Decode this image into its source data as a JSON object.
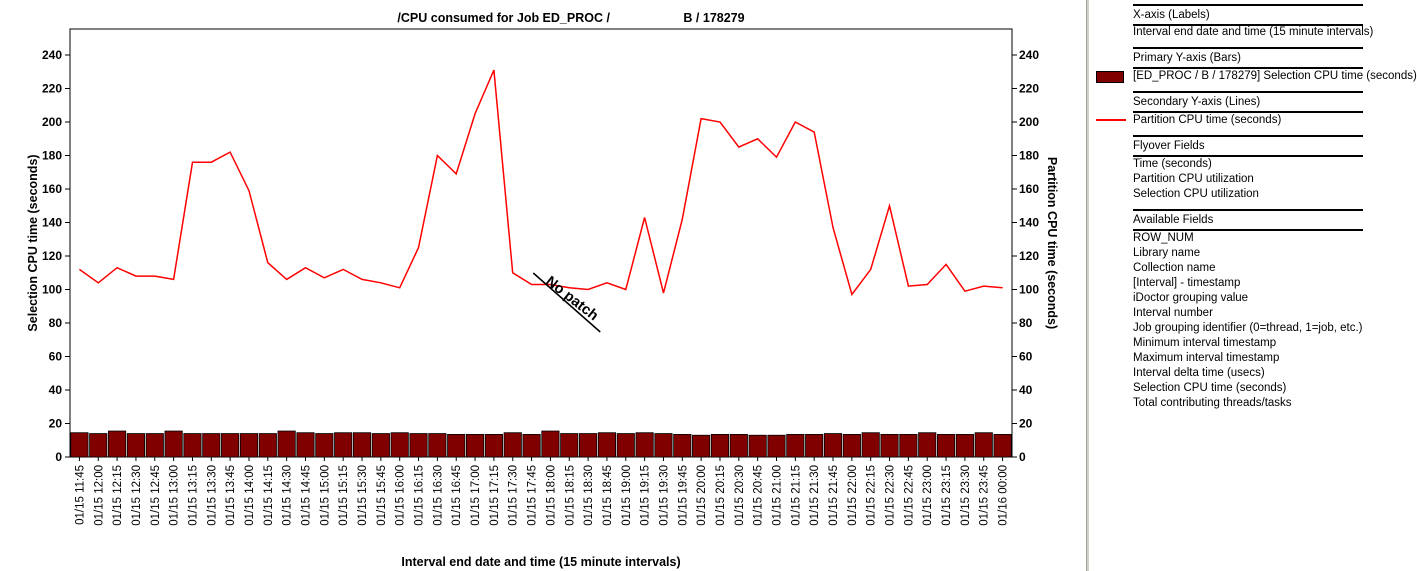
{
  "chart_data": {
    "type": "bar+line",
    "title": "/CPU consumed for Job ED_PROC / ",
    "title_redacted_tail": "B / 178279",
    "xlabel": "Interval end date and time (15 minute intervals)",
    "ylabel": "Selection CPU time (seconds)",
    "y2label": "Partition CPU time (seconds)",
    "ylim": [
      0,
      250
    ],
    "y_ticks": [
      0,
      20,
      40,
      60,
      80,
      100,
      120,
      140,
      160,
      180,
      200,
      220,
      240
    ],
    "y2lim": [
      0,
      250
    ],
    "y2_ticks": [
      0,
      20,
      40,
      60,
      80,
      100,
      120,
      140,
      160,
      180,
      200,
      220,
      240
    ],
    "grid": false,
    "categories": [
      "01/15 11:45",
      "01/15 12:00",
      "01/15 12:15",
      "01/15 12:30",
      "01/15 12:45",
      "01/15 13:00",
      "01/15 13:15",
      "01/15 13:30",
      "01/15 13:45",
      "01/15 14:00",
      "01/15 14:15",
      "01/15 14:30",
      "01/15 14:45",
      "01/15 15:00",
      "01/15 15:15",
      "01/15 15:30",
      "01/15 15:45",
      "01/15 16:00",
      "01/15 16:15",
      "01/15 16:30",
      "01/15 16:45",
      "01/15 17:00",
      "01/15 17:15",
      "01/15 17:30",
      "01/15 17:45",
      "01/15 18:00",
      "01/15 18:15",
      "01/15 18:30",
      "01/15 18:45",
      "01/15 19:00",
      "01/15 19:15",
      "01/15 19:30",
      "01/15 19:45",
      "01/15 20:00",
      "01/15 20:15",
      "01/15 20:30",
      "01/15 20:45",
      "01/15 21:00",
      "01/15 21:15",
      "01/15 21:30",
      "01/15 21:45",
      "01/15 22:00",
      "01/15 22:15",
      "01/15 22:30",
      "01/15 22:45",
      "01/15 23:00",
      "01/15 23:15",
      "01/15 23:30",
      "01/15 23:45",
      "01/16 00:00"
    ],
    "series": [
      {
        "name": "[ED_PROC / B / 178279] Selection CPU time (seconds)",
        "type": "bar",
        "axis": "primary",
        "color": "#800000",
        "values": [
          14.5,
          14,
          15.5,
          14,
          14,
          15.5,
          14,
          14,
          14,
          14,
          14,
          15.5,
          14.5,
          14,
          14.5,
          14.5,
          14,
          14.5,
          14,
          14,
          13.5,
          13.5,
          13.5,
          14.5,
          13.5,
          15.5,
          14,
          14,
          14.5,
          14,
          14.5,
          14,
          13.5,
          13,
          13.5,
          13.5,
          13,
          13,
          13.5,
          13.5,
          14,
          13.5,
          14.5,
          13.5,
          13.5,
          14.5,
          13.5,
          13.5,
          14.5,
          13.5
        ]
      },
      {
        "name": "Partition CPU time (seconds)",
        "type": "line",
        "axis": "secondary",
        "color": "#ff0000",
        "values": [
          112,
          104,
          113,
          108,
          108,
          106,
          176,
          176,
          182,
          159,
          116,
          106,
          113,
          107,
          112,
          106,
          104,
          101,
          125,
          180,
          169,
          205,
          231,
          110,
          103,
          103,
          101,
          100,
          104,
          100,
          143,
          98,
          142,
          202,
          200,
          185,
          190,
          179,
          200,
          194,
          137,
          97,
          112,
          150,
          102,
          103,
          115,
          99,
          102,
          101
        ]
      }
    ],
    "annotations": [
      {
        "text": "No patch",
        "at_index": 26
      }
    ]
  },
  "legend": {
    "x_axis_header": "X-axis (Labels)",
    "x_axis_field": "Interval end date and time (15 minute intervals)",
    "primary_header": "Primary Y-axis (Bars)",
    "primary_field": "[ED_PROC / B / 178279] Selection CPU time (seconds)",
    "secondary_header": "Secondary Y-axis (Lines)",
    "secondary_field": "Partition CPU time (seconds)",
    "flyover_header": "Flyover Fields",
    "flyover_fields": [
      "Time (seconds)",
      "Partition CPU utilization",
      "Selection CPU utilization"
    ],
    "available_header": "Available Fields",
    "available_fields": [
      "ROW_NUM",
      "Library name",
      "Collection name",
      "[Interval] - timestamp",
      "iDoctor grouping value",
      "Interval number",
      "Job grouping identifier (0=thread, 1=job, etc.)",
      "Minimum interval timestamp",
      "Maximum interval timestamp",
      "Interval delta time (usecs)",
      "Selection CPU time (seconds)",
      "Total contributing threads/tasks"
    ],
    "bar_swatch_color": "#800000",
    "line_swatch_color": "#ff0000"
  }
}
